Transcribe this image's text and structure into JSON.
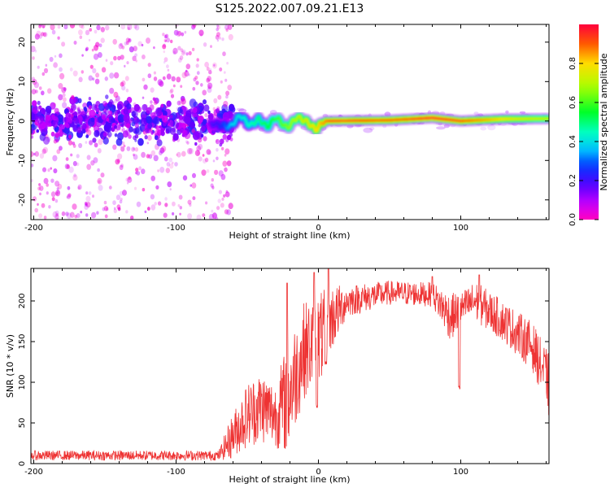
{
  "figure": {
    "title": "S125.2022.007.09.21.E13"
  },
  "chart_data": [
    {
      "type": "heatmap",
      "xlabel": "Height of straight line (km)",
      "ylabel": "Frequency (Hz)",
      "xlim": [
        -202,
        162
      ],
      "ylim": [
        -25,
        24.5
      ],
      "x_ticks": [
        -200,
        -100,
        0,
        100
      ],
      "x_tick_labels": [
        "-200",
        "-100",
        "0",
        "100"
      ],
      "y_ticks": [
        -20,
        -10,
        0,
        10,
        20
      ],
      "y_tick_labels": [
        "-20",
        "-10",
        "0",
        "10",
        "20"
      ],
      "colorbar": {
        "label": "Normalized spectral amplitude",
        "ticks": [
          0,
          0.2,
          0.4,
          0.6,
          0.8
        ],
        "tick_labels": [
          "0.0",
          "0.2",
          "0.4",
          "0.6",
          "0.8"
        ],
        "range": [
          0,
          1
        ],
        "colormap": "gist_rainbow"
      },
      "noise_region_x": [
        -202,
        -70
      ],
      "ridge_trace": [
        {
          "x": -200,
          "y": 0.5
        },
        {
          "x": -150,
          "y": 0.3
        },
        {
          "x": -100,
          "y": 0.0
        },
        {
          "x": -75,
          "y": -0.6
        },
        {
          "x": -62,
          "y": -1.5
        },
        {
          "x": -55,
          "y": 1.5
        },
        {
          "x": -48,
          "y": -1.2
        },
        {
          "x": -42,
          "y": 0.5
        },
        {
          "x": -36,
          "y": -1.5
        },
        {
          "x": -30,
          "y": 1.0
        },
        {
          "x": -22,
          "y": -1.8
        },
        {
          "x": -15,
          "y": 1.0
        },
        {
          "x": -8,
          "y": -0.2
        },
        {
          "x": -2,
          "y": -2.2
        },
        {
          "x": 4,
          "y": 0.0
        },
        {
          "x": 50,
          "y": 0.2
        },
        {
          "x": 80,
          "y": 0.8
        },
        {
          "x": 100,
          "y": 0.0
        },
        {
          "x": 130,
          "y": 0.5
        },
        {
          "x": 162,
          "y": 0.6
        }
      ],
      "ridge_amplitude": [
        {
          "x": -202,
          "a": 0.12
        },
        {
          "x": -70,
          "a": 0.2
        },
        {
          "x": -60,
          "a": 0.38
        },
        {
          "x": -40,
          "a": 0.5
        },
        {
          "x": -20,
          "a": 0.65
        },
        {
          "x": 0,
          "a": 0.8
        },
        {
          "x": 10,
          "a": 0.92
        },
        {
          "x": 60,
          "a": 0.9
        },
        {
          "x": 80,
          "a": 0.96
        },
        {
          "x": 100,
          "a": 0.92
        },
        {
          "x": 140,
          "a": 0.75
        },
        {
          "x": 162,
          "a": 0.7
        }
      ]
    },
    {
      "type": "line",
      "xlabel": "Height of straight line (km)",
      "ylabel": "SNR (10 * v/v)",
      "xlim": [
        -202,
        162
      ],
      "ylim": [
        0,
        240
      ],
      "x_ticks": [
        -200,
        -100,
        0,
        100
      ],
      "x_tick_labels": [
        "-200",
        "-100",
        "0",
        "100"
      ],
      "y_ticks": [
        0,
        50,
        100,
        150,
        200
      ],
      "y_tick_labels": [
        "0",
        "50",
        "100",
        "150",
        "200"
      ],
      "color": "#ee3333",
      "envelope": [
        {
          "x": -202,
          "mean": 10,
          "amp": 6
        },
        {
          "x": -70,
          "mean": 10,
          "amp": 6
        },
        {
          "x": -62,
          "mean": 30,
          "amp": 25
        },
        {
          "x": -50,
          "mean": 60,
          "amp": 40
        },
        {
          "x": -40,
          "mean": 70,
          "amp": 45
        },
        {
          "x": -30,
          "mean": 60,
          "amp": 40
        },
        {
          "x": -22,
          "mean": 80,
          "amp": 70
        },
        {
          "x": -10,
          "mean": 140,
          "amp": 60
        },
        {
          "x": 0,
          "mean": 150,
          "amp": 60
        },
        {
          "x": 10,
          "mean": 180,
          "amp": 40
        },
        {
          "x": 20,
          "mean": 200,
          "amp": 20
        },
        {
          "x": 50,
          "mean": 210,
          "amp": 15
        },
        {
          "x": 80,
          "mean": 208,
          "amp": 15
        },
        {
          "x": 93,
          "mean": 180,
          "amp": 30
        },
        {
          "x": 100,
          "mean": 190,
          "amp": 20
        },
        {
          "x": 110,
          "mean": 200,
          "amp": 25
        },
        {
          "x": 130,
          "mean": 175,
          "amp": 25
        },
        {
          "x": 150,
          "mean": 145,
          "amp": 30
        },
        {
          "x": 162,
          "mean": 100,
          "amp": 35
        }
      ],
      "dips": [
        {
          "x": -1,
          "y": 68
        },
        {
          "x": 5,
          "y": 120
        },
        {
          "x": 99,
          "y": 90
        }
      ],
      "spikes": [
        {
          "x": -22,
          "y": 222
        },
        {
          "x": -3,
          "y": 235
        },
        {
          "x": 7,
          "y": 240
        },
        {
          "x": 80,
          "y": 230
        },
        {
          "x": 113,
          "y": 232
        },
        {
          "x": 162,
          "y": 60
        }
      ]
    }
  ]
}
